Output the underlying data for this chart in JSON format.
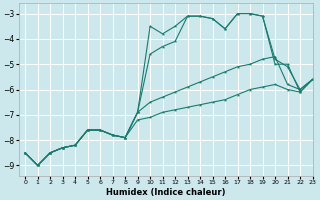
{
  "xlabel": "Humidex (Indice chaleur)",
  "bg_color": "#cce8ec",
  "line_color": "#1a7a6e",
  "grid_color": "#ffffff",
  "xlim": [
    -0.5,
    23
  ],
  "ylim": [
    -9.4,
    -2.6
  ],
  "yticks": [
    -9,
    -8,
    -7,
    -6,
    -5,
    -4,
    -3
  ],
  "xticks": [
    0,
    1,
    2,
    3,
    4,
    5,
    6,
    7,
    8,
    9,
    10,
    11,
    12,
    13,
    14,
    15,
    16,
    17,
    18,
    19,
    20,
    21,
    22,
    23
  ],
  "series": [
    {
      "x": [
        0,
        1,
        2,
        3,
        4,
        5,
        6,
        7,
        8,
        9,
        10,
        11,
        12,
        13,
        14,
        15,
        16,
        17,
        18,
        19,
        20,
        21,
        22,
        23
      ],
      "y": [
        -8.5,
        -9.0,
        -8.5,
        -8.3,
        -8.2,
        -7.6,
        -7.6,
        -7.8,
        -7.9,
        -6.9,
        -3.5,
        -3.8,
        -3.5,
        -3.1,
        -3.1,
        -3.2,
        -3.6,
        -3.0,
        -3.0,
        -3.1,
        -5.0,
        -5.0,
        -6.1,
        -5.6
      ]
    },
    {
      "x": [
        0,
        1,
        2,
        3,
        4,
        5,
        6,
        7,
        8,
        9,
        10,
        11,
        12,
        13,
        14,
        15,
        16,
        17,
        18,
        19,
        20,
        21,
        22,
        23
      ],
      "y": [
        -8.5,
        -9.0,
        -8.5,
        -8.3,
        -8.2,
        -7.6,
        -7.6,
        -7.8,
        -7.9,
        -6.9,
        -4.6,
        -4.3,
        -4.1,
        -3.1,
        -3.1,
        -3.2,
        -3.6,
        -3.0,
        -3.0,
        -3.1,
        -4.8,
        -5.1,
        -6.0,
        -5.6
      ]
    },
    {
      "x": [
        0,
        1,
        2,
        3,
        4,
        5,
        6,
        7,
        8,
        9,
        10,
        11,
        12,
        13,
        14,
        15,
        16,
        17,
        18,
        19,
        20,
        21,
        22,
        23
      ],
      "y": [
        -8.5,
        -9.0,
        -8.5,
        -8.3,
        -8.2,
        -7.6,
        -7.6,
        -7.8,
        -7.9,
        -6.9,
        -6.5,
        -6.3,
        -6.1,
        -5.9,
        -5.7,
        -5.5,
        -5.3,
        -5.1,
        -5.0,
        -4.8,
        -4.7,
        -5.8,
        -6.0,
        -5.6
      ]
    },
    {
      "x": [
        0,
        1,
        2,
        3,
        4,
        5,
        6,
        7,
        8,
        9,
        10,
        11,
        12,
        13,
        14,
        15,
        16,
        17,
        18,
        19,
        20,
        21,
        22,
        23
      ],
      "y": [
        -8.5,
        -9.0,
        -8.5,
        -8.3,
        -8.2,
        -7.6,
        -7.6,
        -7.8,
        -7.9,
        -7.2,
        -7.1,
        -6.9,
        -6.8,
        -6.7,
        -6.6,
        -6.5,
        -6.4,
        -6.2,
        -6.0,
        -5.9,
        -5.8,
        -6.0,
        -6.1,
        -5.6
      ]
    }
  ]
}
